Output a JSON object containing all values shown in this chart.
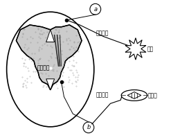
{
  "bg_color": "#ffffff",
  "sc_color": "#cccccc",
  "label_nerve_center": "神经中枢",
  "label_afferent": "传入神经",
  "label_efferent": "传出神经",
  "label_skin": "皮肤",
  "label_muscle": "骨骼肌",
  "label_a": "a",
  "label_b": "b",
  "text_color": "#000000",
  "line_color": "#000000"
}
